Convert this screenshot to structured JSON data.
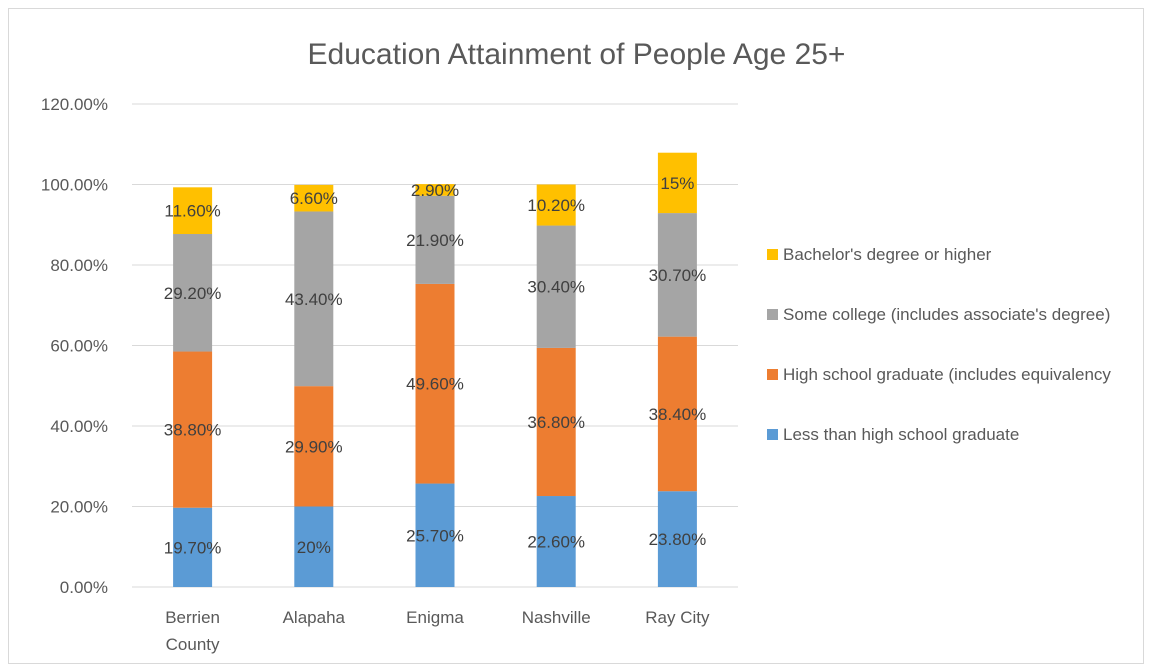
{
  "chart_data": {
    "type": "bar",
    "stacked": true,
    "title": "Education Attainment of People Age 25+",
    "categories": [
      [
        "Berrien",
        "County"
      ],
      [
        "Alapaha"
      ],
      [
        "Enigma"
      ],
      [
        "Nashville"
      ],
      [
        "Ray City"
      ]
    ],
    "ylim": [
      0,
      120
    ],
    "yticks": [
      "0.00%",
      "20.00%",
      "40.00%",
      "60.00%",
      "80.00%",
      "100.00%",
      "120.00%"
    ],
    "grid": true,
    "legend_position": "right",
    "series": [
      {
        "name": "Less than high school graduate",
        "color": "#5b9bd5",
        "values": [
          19.7,
          20,
          25.7,
          22.6,
          23.8
        ],
        "labels": [
          "19.70%",
          "20%",
          "25.70%",
          "22.60%",
          "23.80%"
        ]
      },
      {
        "name": "High school graduate (includes equivalency",
        "color": "#ed7d31",
        "values": [
          38.8,
          29.9,
          49.6,
          36.8,
          38.4
        ],
        "labels": [
          "38.80%",
          "29.90%",
          "49.60%",
          "36.80%",
          "38.40%"
        ]
      },
      {
        "name": "Some college (includes associate's degree)",
        "color": "#a5a5a5",
        "values": [
          29.2,
          43.4,
          21.9,
          30.4,
          30.7
        ],
        "labels": [
          "29.20%",
          "43.40%",
          "21.90%",
          "30.40%",
          "30.70%"
        ]
      },
      {
        "name": "Bachelor's degree or higher",
        "color": "#ffc000",
        "values": [
          11.6,
          6.6,
          2.9,
          10.2,
          15
        ],
        "labels": [
          "11.60%",
          "6.60%",
          "2.90%",
          "10.20%",
          "15%"
        ]
      }
    ]
  }
}
